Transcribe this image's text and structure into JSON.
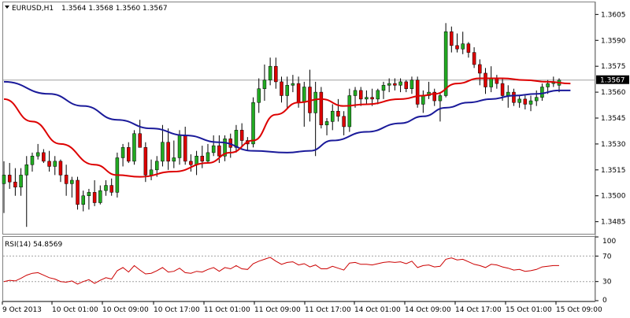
{
  "colors": {
    "background": "#ffffff",
    "frame": "#808080",
    "up_candle": "#22aa22",
    "down_candle": "#dd0000",
    "wick": "#000000",
    "ma_fast": "#dd0000",
    "ma_slow": "#1a1a9a",
    "current_price_line": "#a0a0a0",
    "rsi_line": "#cc0000",
    "rsi_level": "#a0a0a0"
  },
  "header": {
    "dropdown_icon": "triangle-down-icon",
    "symbol_tf": "EURUSD,H1",
    "ohlc": "1.3564 1.3568 1.3560 1.3567"
  },
  "current_price_label": "1.3567",
  "rsi": {
    "label": "RSI(14) 54.8569",
    "ticks": [
      "100",
      "70",
      "30",
      "0"
    ]
  },
  "price_axis_labels": [
    "1.3605",
    "1.3590",
    "1.3575",
    "1.3560",
    "1.3545",
    "1.3530",
    "1.3515",
    "1.3500",
    "1.3485"
  ],
  "time_axis_labels": [
    "9 Oct 2013",
    "10 Oct 01:00",
    "10 Oct 09:00",
    "10 Oct 17:00",
    "11 Oct 01:00",
    "11 Oct 09:00",
    "11 Oct 17:00",
    "14 Oct 01:00",
    "14 Oct 09:00",
    "14 Oct 17:00",
    "15 Oct 01:00",
    "15 Oct 09:00"
  ],
  "chart_data": {
    "type": "candlestick",
    "symbol": "EURUSD",
    "timeframe": "H1",
    "ylim": [
      1.3478,
      1.3612
    ],
    "current_price": 1.3567,
    "candles": [
      [
        1.3507,
        1.352,
        1.349,
        1.3512
      ],
      [
        1.3512,
        1.3519,
        1.3504,
        1.3508
      ],
      [
        1.3508,
        1.3516,
        1.35,
        1.3505
      ],
      [
        1.3505,
        1.3516,
        1.35,
        1.3512
      ],
      [
        1.3512,
        1.3523,
        1.3482,
        1.3518
      ],
      [
        1.3518,
        1.3525,
        1.3514,
        1.3523
      ],
      [
        1.3523,
        1.353,
        1.3521,
        1.3525
      ],
      [
        1.3525,
        1.3527,
        1.3519,
        1.352
      ],
      [
        1.352,
        1.3526,
        1.3514,
        1.3517
      ],
      [
        1.3517,
        1.3523,
        1.3512,
        1.352
      ],
      [
        1.352,
        1.3521,
        1.3508,
        1.3512
      ],
      [
        1.3512,
        1.3518,
        1.35,
        1.3507
      ],
      [
        1.3507,
        1.3511,
        1.3499,
        1.3509
      ],
      [
        1.3509,
        1.3511,
        1.3492,
        1.3495
      ],
      [
        1.3495,
        1.3503,
        1.3491,
        1.35
      ],
      [
        1.35,
        1.3504,
        1.3492,
        1.3502
      ],
      [
        1.3502,
        1.3509,
        1.3494,
        1.3496
      ],
      [
        1.3496,
        1.3506,
        1.3495,
        1.3503
      ],
      [
        1.3503,
        1.3509,
        1.35,
        1.3506
      ],
      [
        1.3506,
        1.351,
        1.35,
        1.3502
      ],
      [
        1.3502,
        1.3525,
        1.3499,
        1.3522
      ],
      [
        1.3522,
        1.353,
        1.3517,
        1.3528
      ],
      [
        1.3528,
        1.3531,
        1.3519,
        1.352
      ],
      [
        1.352,
        1.3538,
        1.3518,
        1.3536
      ],
      [
        1.3536,
        1.3544,
        1.3528,
        1.3528
      ],
      [
        1.3528,
        1.3531,
        1.3508,
        1.3512
      ],
      [
        1.3512,
        1.3521,
        1.3509,
        1.3515
      ],
      [
        1.3515,
        1.3523,
        1.3511,
        1.352
      ],
      [
        1.352,
        1.3541,
        1.3517,
        1.3531
      ],
      [
        1.3531,
        1.3539,
        1.3515,
        1.352
      ],
      [
        1.352,
        1.3532,
        1.3516,
        1.3522
      ],
      [
        1.3522,
        1.3538,
        1.3518,
        1.3535
      ],
      [
        1.3535,
        1.354,
        1.3518,
        1.352
      ],
      [
        1.352,
        1.3524,
        1.3514,
        1.3518
      ],
      [
        1.3518,
        1.3526,
        1.3512,
        1.3523
      ],
      [
        1.3523,
        1.3529,
        1.3516,
        1.352
      ],
      [
        1.352,
        1.353,
        1.3519,
        1.3525
      ],
      [
        1.3525,
        1.3535,
        1.3523,
        1.3529
      ],
      [
        1.3529,
        1.3535,
        1.3519,
        1.3523
      ],
      [
        1.3523,
        1.3535,
        1.352,
        1.3533
      ],
      [
        1.3533,
        1.3536,
        1.3522,
        1.3528
      ],
      [
        1.3528,
        1.3541,
        1.3525,
        1.3538
      ],
      [
        1.3538,
        1.3542,
        1.3528,
        1.3532
      ],
      [
        1.3532,
        1.3534,
        1.3526,
        1.353
      ],
      [
        1.353,
        1.3557,
        1.3528,
        1.3554
      ],
      [
        1.3554,
        1.3568,
        1.3548,
        1.3562
      ],
      [
        1.3562,
        1.3576,
        1.3555,
        1.3567
      ],
      [
        1.3567,
        1.358,
        1.3564,
        1.3575
      ],
      [
        1.3575,
        1.358,
        1.3562,
        1.3566
      ],
      [
        1.3566,
        1.3569,
        1.3554,
        1.3558
      ],
      [
        1.3558,
        1.3569,
        1.355,
        1.3564
      ],
      [
        1.3564,
        1.357,
        1.356,
        1.3565
      ],
      [
        1.3565,
        1.3569,
        1.3551,
        1.3554
      ],
      [
        1.3554,
        1.3566,
        1.354,
        1.3563
      ],
      [
        1.3563,
        1.3573,
        1.3543,
        1.3548
      ],
      [
        1.3548,
        1.3566,
        1.3523,
        1.356
      ],
      [
        1.356,
        1.3563,
        1.3539,
        1.3541
      ],
      [
        1.3541,
        1.3545,
        1.3535,
        1.3543
      ],
      [
        1.3543,
        1.3553,
        1.3538,
        1.3549
      ],
      [
        1.3549,
        1.3556,
        1.3543,
        1.3546
      ],
      [
        1.3546,
        1.3549,
        1.3535,
        1.354
      ],
      [
        1.354,
        1.3562,
        1.3537,
        1.3558
      ],
      [
        1.3558,
        1.3563,
        1.3551,
        1.3561
      ],
      [
        1.3561,
        1.3563,
        1.3552,
        1.3556
      ],
      [
        1.3556,
        1.3561,
        1.3553,
        1.3557
      ],
      [
        1.3557,
        1.3562,
        1.3552,
        1.3556
      ],
      [
        1.3556,
        1.3562,
        1.3553,
        1.3561
      ],
      [
        1.3561,
        1.3566,
        1.3556,
        1.3564
      ],
      [
        1.3564,
        1.3568,
        1.356,
        1.3565
      ],
      [
        1.3565,
        1.3568,
        1.3561,
        1.3564
      ],
      [
        1.3564,
        1.3568,
        1.356,
        1.3566
      ],
      [
        1.3566,
        1.3567,
        1.356,
        1.3562
      ],
      [
        1.3562,
        1.3569,
        1.3559,
        1.3567
      ],
      [
        1.3567,
        1.3569,
        1.3551,
        1.3553
      ],
      [
        1.3553,
        1.3561,
        1.3548,
        1.3558
      ],
      [
        1.3558,
        1.3566,
        1.3556,
        1.356
      ],
      [
        1.356,
        1.3562,
        1.3552,
        1.3555
      ],
      [
        1.3555,
        1.356,
        1.3543,
        1.3558
      ],
      [
        1.3558,
        1.36,
        1.3557,
        1.3595
      ],
      [
        1.3595,
        1.3598,
        1.3583,
        1.3587
      ],
      [
        1.3587,
        1.3594,
        1.3583,
        1.3585
      ],
      [
        1.3585,
        1.3595,
        1.3582,
        1.3588
      ],
      [
        1.3588,
        1.3589,
        1.358,
        1.3583
      ],
      [
        1.3583,
        1.3586,
        1.3574,
        1.3576
      ],
      [
        1.3576,
        1.3579,
        1.3564,
        1.3571
      ],
      [
        1.3571,
        1.3574,
        1.3559,
        1.3563
      ],
      [
        1.3563,
        1.3575,
        1.356,
        1.3568
      ],
      [
        1.3568,
        1.357,
        1.3562,
        1.3565
      ],
      [
        1.3565,
        1.3568,
        1.3555,
        1.3558
      ],
      [
        1.3558,
        1.3564,
        1.3551,
        1.356
      ],
      [
        1.356,
        1.3562,
        1.3552,
        1.3554
      ],
      [
        1.3554,
        1.3558,
        1.3551,
        1.3556
      ],
      [
        1.3556,
        1.3558,
        1.355,
        1.3553
      ],
      [
        1.3553,
        1.3558,
        1.3549,
        1.3555
      ],
      [
        1.3555,
        1.3561,
        1.3552,
        1.3557
      ],
      [
        1.3557,
        1.3565,
        1.3555,
        1.3563
      ],
      [
        1.3563,
        1.3567,
        1.3559,
        1.3565
      ],
      [
        1.3565,
        1.3569,
        1.3563,
        1.3566
      ],
      [
        1.3564,
        1.3568,
        1.356,
        1.3567
      ]
    ],
    "ma_fast_anchors": [
      [
        0,
        1.3556
      ],
      [
        5,
        1.3543
      ],
      [
        10,
        1.353
      ],
      [
        16,
        1.3518
      ],
      [
        20,
        1.3512
      ],
      [
        24,
        1.3511
      ],
      [
        30,
        1.3514
      ],
      [
        36,
        1.3519
      ],
      [
        40,
        1.3525
      ],
      [
        44,
        1.3532
      ],
      [
        48,
        1.3547
      ],
      [
        52,
        1.3554
      ],
      [
        56,
        1.3556
      ],
      [
        60,
        1.3552
      ],
      [
        64,
        1.3553
      ],
      [
        70,
        1.3556
      ],
      [
        74,
        1.3558
      ],
      [
        76,
        1.3559
      ],
      [
        80,
        1.3565
      ],
      [
        84,
        1.3568
      ],
      [
        88,
        1.3568
      ],
      [
        92,
        1.3567
      ],
      [
        96,
        1.3566
      ],
      [
        100,
        1.3565
      ]
    ],
    "ma_slow_anchors": [
      [
        0,
        1.3566
      ],
      [
        8,
        1.3559
      ],
      [
        14,
        1.3552
      ],
      [
        20,
        1.3544
      ],
      [
        26,
        1.3539
      ],
      [
        32,
        1.3535
      ],
      [
        38,
        1.3531
      ],
      [
        44,
        1.3526
      ],
      [
        50,
        1.3525
      ],
      [
        54,
        1.3526
      ],
      [
        58,
        1.3532
      ],
      [
        64,
        1.3537
      ],
      [
        70,
        1.3542
      ],
      [
        74,
        1.3546
      ],
      [
        78,
        1.3551
      ],
      [
        82,
        1.3554
      ],
      [
        86,
        1.3556
      ],
      [
        90,
        1.3558
      ],
      [
        94,
        1.3559
      ],
      [
        98,
        1.3561
      ],
      [
        100,
        1.3561
      ]
    ],
    "rsi_values": [
      30,
      32,
      31,
      35,
      40,
      43,
      44,
      40,
      36,
      34,
      30,
      29,
      31,
      26,
      30,
      33,
      27,
      32,
      36,
      34,
      47,
      52,
      45,
      55,
      48,
      42,
      43,
      47,
      52,
      45,
      46,
      51,
      44,
      43,
      46,
      45,
      49,
      52,
      46,
      52,
      50,
      55,
      50,
      49,
      58,
      62,
      65,
      68,
      62,
      57,
      60,
      61,
      56,
      58,
      53,
      56,
      50,
      50,
      54,
      51,
      48,
      59,
      60,
      57,
      57,
      56,
      58,
      60,
      61,
      60,
      61,
      58,
      62,
      52,
      55,
      56,
      53,
      54,
      65,
      67,
      64,
      65,
      61,
      57,
      55,
      52,
      57,
      56,
      53,
      51,
      48,
      49,
      46,
      47,
      49,
      53,
      54,
      55,
      55
    ],
    "rsi_levels": [
      70,
      30
    ],
    "rsi_range": [
      0,
      100
    ]
  }
}
